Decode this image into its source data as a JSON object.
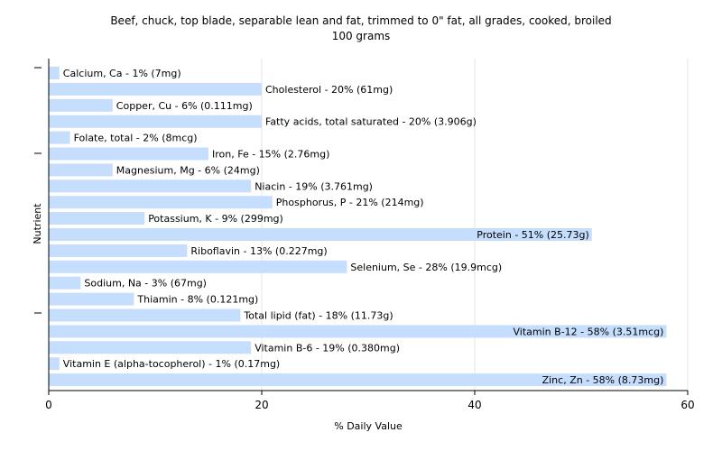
{
  "chart_data": {
    "type": "bar",
    "orientation": "horizontal",
    "title": "Beef, chuck, top blade, separable lean and  fat, trimmed to 0\" fat, all grades, cooked, broiled",
    "subtitle": "100 grams",
    "xlabel": "% Daily Value",
    "ylabel": "Nutrient",
    "xlim": [
      0,
      60
    ],
    "xticks": [
      "0",
      "20",
      "40",
      "60"
    ],
    "grid": "vertical",
    "legend": "none",
    "bar_color": "#c6defd",
    "categories": [
      "Calcium, Ca",
      "Cholesterol",
      "Copper, Cu",
      "Fatty acids, total saturated",
      "Folate, total",
      "Iron, Fe",
      "Magnesium, Mg",
      "Niacin",
      "Phosphorus, P",
      "Potassium, K",
      "Protein",
      "Riboflavin",
      "Selenium, Se",
      "Sodium, Na",
      "Thiamin",
      "Total lipid (fat)",
      "Vitamin B-12",
      "Vitamin B-6",
      "Vitamin E (alpha-tocopherol)",
      "Zinc, Zn"
    ],
    "values": [
      1,
      20,
      6,
      20,
      2,
      15,
      6,
      19,
      21,
      9,
      51,
      13,
      28,
      3,
      8,
      18,
      58,
      19,
      1,
      58
    ],
    "labels": [
      "Calcium, Ca - 1% (7mg)",
      "Cholesterol - 20% (61mg)",
      "Copper, Cu - 6% (0.111mg)",
      "Fatty acids, total saturated - 20% (3.906g)",
      "Folate, total - 2% (8mcg)",
      "Iron, Fe - 15% (2.76mg)",
      "Magnesium, Mg - 6% (24mg)",
      "Niacin - 19% (3.761mg)",
      "Phosphorus, P - 21% (214mg)",
      "Potassium, K - 9% (299mg)",
      "Protein - 51% (25.73g)",
      "Riboflavin - 13% (0.227mg)",
      "Selenium, Se - 28% (19.9mcg)",
      "Sodium, Na - 3% (67mg)",
      "Thiamin - 8% (0.121mg)",
      "Total lipid (fat) - 18% (11.73g)",
      "Vitamin B-12 - 58% (3.51mcg)",
      "Vitamin B-6 - 19% (0.380mg)",
      "Vitamin E (alpha-tocopherol) - 1% (0.17mg)",
      "Zinc, Zn - 58% (8.73mg)"
    ]
  }
}
